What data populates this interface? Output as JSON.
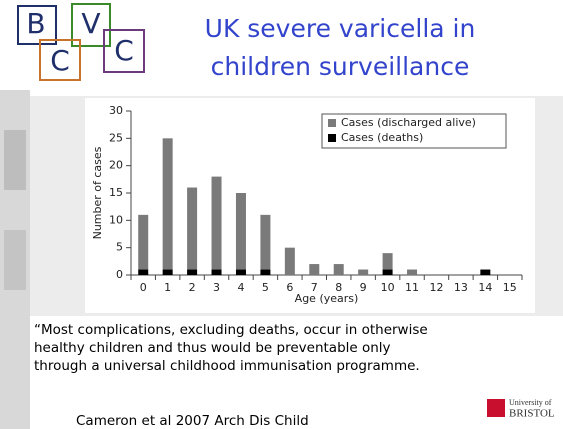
{
  "logo": {
    "letters": [
      "B",
      "V",
      "C",
      "C"
    ]
  },
  "slide_title": [
    "UK severe varicella in",
    "children surveillance"
  ],
  "chart_data": {
    "type": "bar",
    "stacked": true,
    "x_label": "Age (years)",
    "y_label": "Number of cases",
    "categories": [
      "0",
      "1",
      "2",
      "3",
      "4",
      "5",
      "6",
      "7",
      "8",
      "9",
      "10",
      "11",
      "12",
      "13",
      "14",
      "15"
    ],
    "series": [
      {
        "name": "Cases (discharged alive)",
        "color": "#7a7a7a",
        "values": [
          10,
          24,
          15,
          17,
          14,
          10,
          5,
          2,
          2,
          1,
          3,
          1,
          0,
          0,
          0,
          0
        ]
      },
      {
        "name": "Cases (deaths)",
        "color": "#000000",
        "values": [
          1,
          1,
          1,
          1,
          1,
          1,
          0,
          0,
          0,
          0,
          1,
          0,
          0,
          0,
          1,
          0
        ]
      }
    ],
    "ylim": [
      0,
      30
    ],
    "yticks": [
      0,
      5,
      10,
      15,
      20,
      25,
      30
    ],
    "legend": "top-right"
  },
  "quote": [
    "“Most complications, excluding deaths, occur in otherwise",
    "healthy children and thus would be preventable only",
    "through a universal childhood immunisation programme."
  ],
  "citation": "Cameron et al 2007 Arch Dis Child",
  "university": [
    "University of",
    "BRISTOL"
  ]
}
